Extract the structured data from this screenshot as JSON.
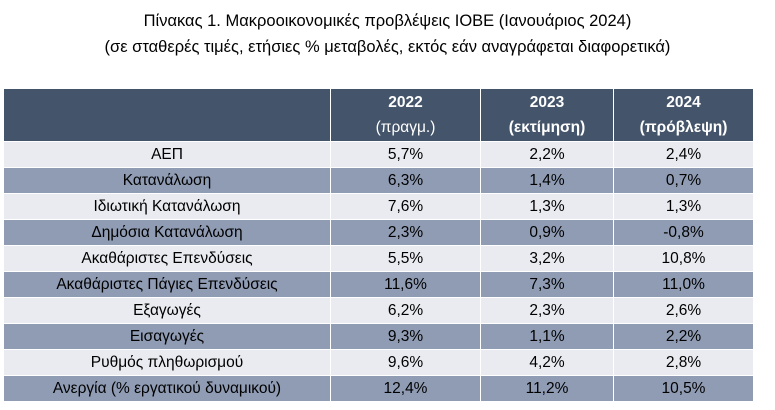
{
  "header": {
    "title": "Πίνακας 1. Μακροοικονομικές προβλέψεις ΙΟΒΕ (Ιανουάριος 2024)",
    "subtitle": "(σε σταθερές τιμές, ετήσιες % μεταβολές, εκτός εάν αναγράφεται διαφορετικά)"
  },
  "table": {
    "columns": [
      {
        "year": "2022",
        "note": "(πραγμ.)"
      },
      {
        "year": "2023",
        "note": "(εκτίμηση)"
      },
      {
        "year": "2024",
        "note": "(πρόβλεψη)"
      }
    ],
    "rows": [
      [
        "ΑΕΠ",
        "5,7%",
        "2,2%",
        "2,4%"
      ],
      [
        "Κατανάλωση",
        "6,3%",
        "1,4%",
        "0,7%"
      ],
      [
        "Ιδιωτική Κατανάλωση",
        "7,6%",
        "1,3%",
        "1,3%"
      ],
      [
        "Δημόσια Κατανάλωση",
        "2,3%",
        "0,9%",
        "-0,8%"
      ],
      [
        "Ακαθάριστες Επενδύσεις",
        "5,5%",
        "3,2%",
        "10,8%"
      ],
      [
        "Ακαθάριστες Πάγιες Επενδύσεις",
        "11,6%",
        "7,3%",
        "11,0%"
      ],
      [
        "Εξαγωγές",
        "6,2%",
        "2,3%",
        "2,6%"
      ],
      [
        "Εισαγωγές",
        "9,3%",
        "1,1%",
        "2,2%"
      ],
      [
        "Ρυθμός πληθωρισμού",
        "9,6%",
        "4,2%",
        "2,8%"
      ],
      [
        "Ανεργία (% εργατικού δυναμικού)",
        "12,4%",
        "11,2%",
        "10,5%"
      ]
    ]
  }
}
